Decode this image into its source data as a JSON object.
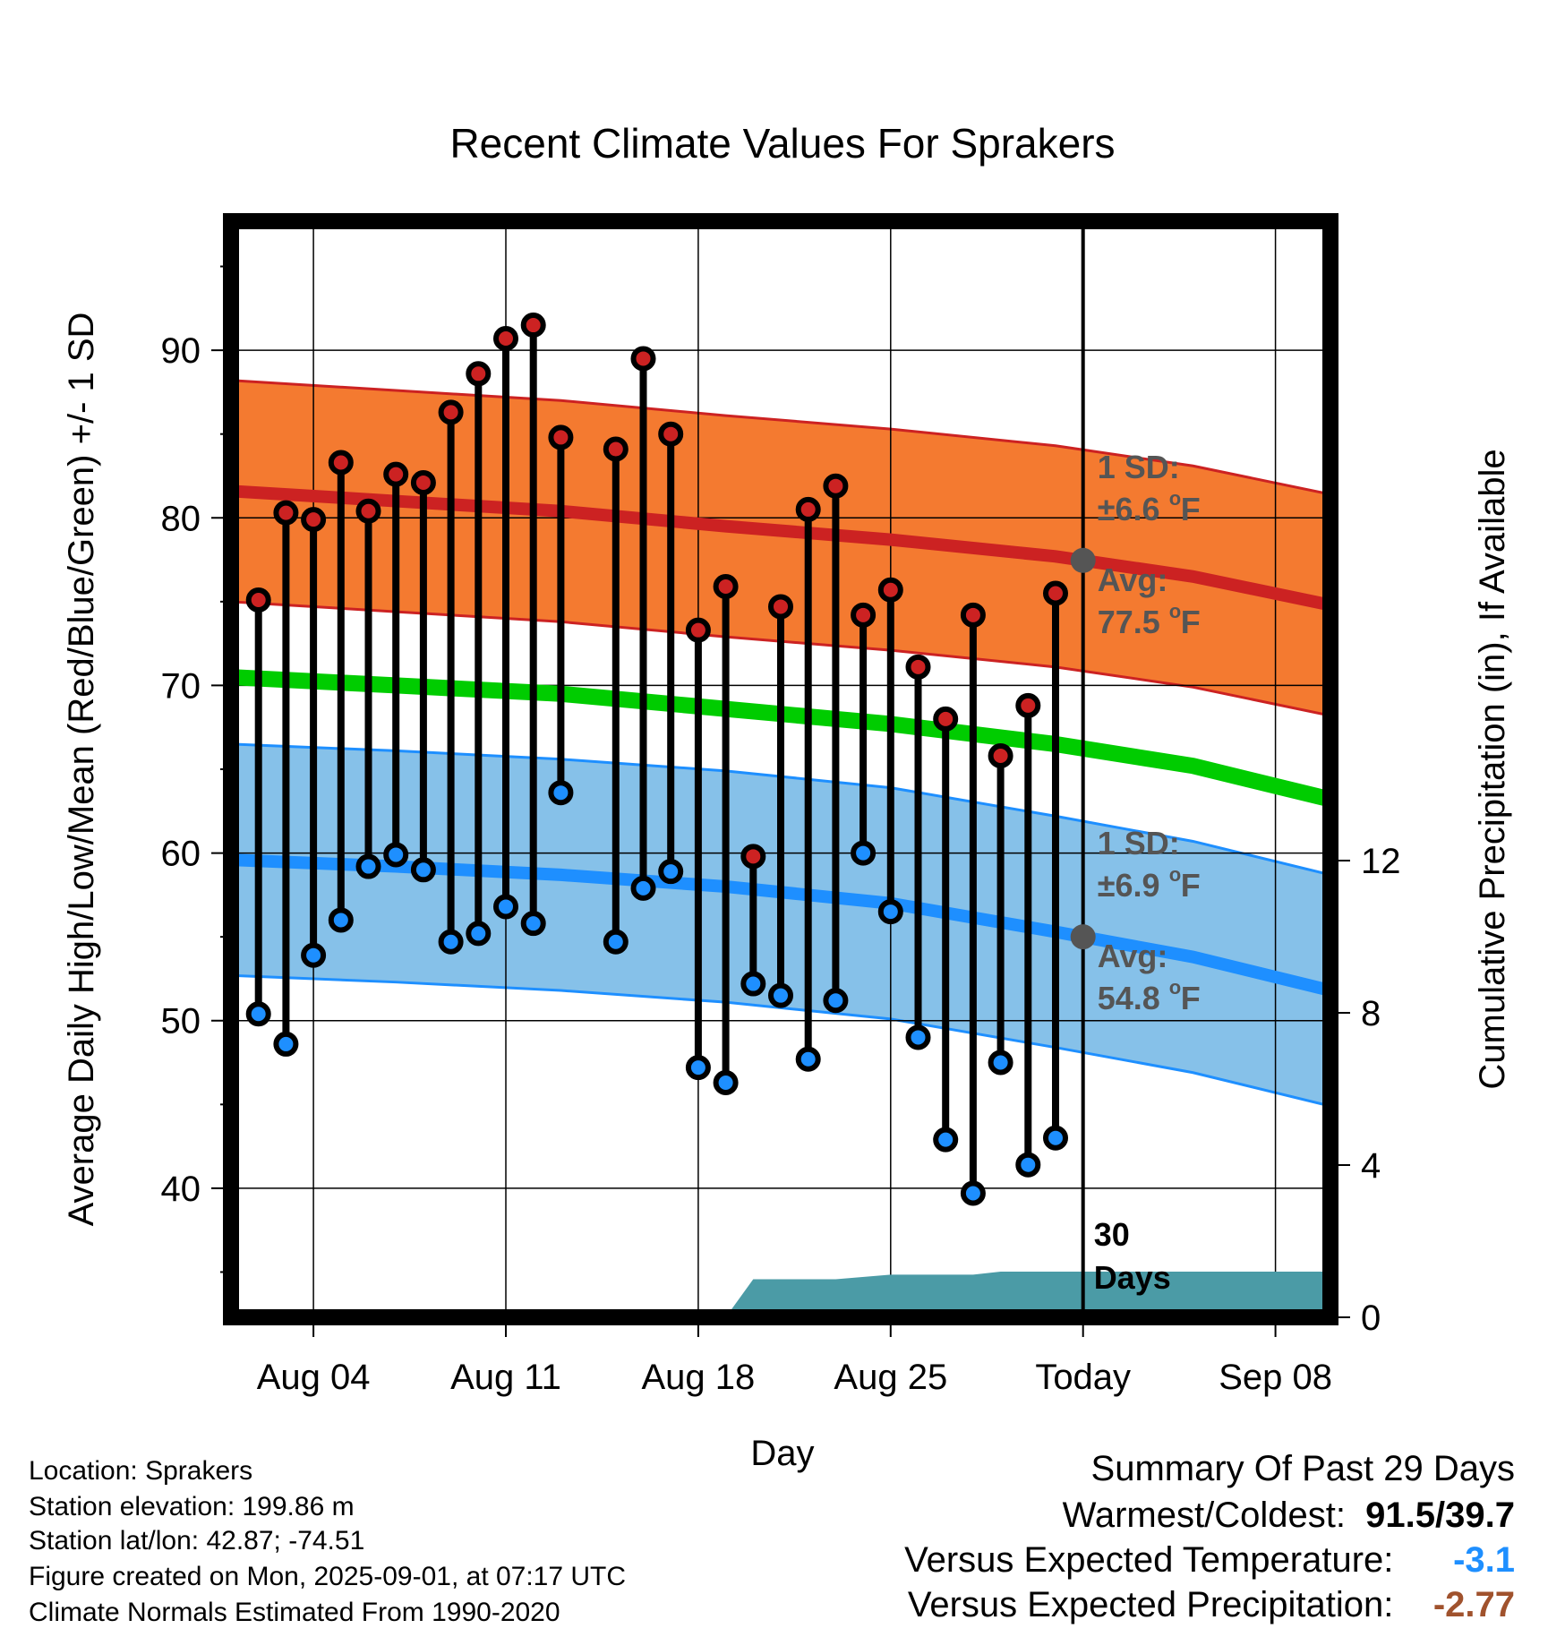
{
  "chart_data": {
    "type": "line",
    "title": "Recent Climate Values For Sprakers",
    "xlabel": "Day",
    "ylabel": "Average Daily High/Low/Mean (Red/Blue/Green) +/- 1 SD",
    "y2label": "Cumulative Precipitation (in), If Available",
    "xlim": [
      "2025-08-01",
      "2025-09-10"
    ],
    "ylim": [
      32.3,
      97.7
    ],
    "y2lim": [
      0,
      28.8
    ],
    "xticks": [
      {
        "date": "2025-08-04",
        "label": "Aug 04"
      },
      {
        "date": "2025-08-11",
        "label": "Aug 11"
      },
      {
        "date": "2025-08-18",
        "label": "Aug 18"
      },
      {
        "date": "2025-08-25",
        "label": "Aug 25"
      },
      {
        "date": "2025-09-01",
        "label": "Today"
      },
      {
        "date": "2025-09-08",
        "label": "Sep 08"
      }
    ],
    "yticks": [
      40,
      50,
      60,
      70,
      80,
      90
    ],
    "y2ticks": [
      0,
      4,
      8,
      12
    ],
    "grid": true,
    "today": "2025-09-01",
    "today_label": [
      "30",
      "Days"
    ],
    "normals_x": [
      "2025-08-01",
      "2025-08-07",
      "2025-08-13",
      "2025-08-19",
      "2025-08-25",
      "2025-08-31",
      "2025-09-05",
      "2025-09-10"
    ],
    "normal_high": {
      "mean": [
        81.6,
        81.0,
        80.4,
        79.5,
        78.7,
        77.7,
        76.5,
        74.8
      ],
      "sd": 6.6,
      "color": "#cc2222",
      "band_color": "#f47a30"
    },
    "normal_low": {
      "mean": [
        59.6,
        59.2,
        58.7,
        58.0,
        57.0,
        55.3,
        53.8,
        51.8
      ],
      "sd": 6.9,
      "color": "#1e8fff",
      "band_color": "#86c1e9"
    },
    "normal_mean": {
      "values": [
        70.5,
        70.0,
        69.5,
        68.6,
        67.7,
        66.5,
        65.2,
        63.2
      ],
      "color": "#00cc00"
    },
    "observed": {
      "dates": [
        "2025-08-02",
        "2025-08-03",
        "2025-08-04",
        "2025-08-05",
        "2025-08-06",
        "2025-08-07",
        "2025-08-08",
        "2025-08-09",
        "2025-08-10",
        "2025-08-11",
        "2025-08-12",
        "2025-08-13",
        "2025-08-15",
        "2025-08-16",
        "2025-08-17",
        "2025-08-18",
        "2025-08-19",
        "2025-08-20",
        "2025-08-21",
        "2025-08-22",
        "2025-08-23",
        "2025-08-24",
        "2025-08-25",
        "2025-08-26",
        "2025-08-27",
        "2025-08-28",
        "2025-08-29",
        "2025-08-30",
        "2025-08-31"
      ],
      "high": [
        75.1,
        80.3,
        79.9,
        83.3,
        80.4,
        82.6,
        82.1,
        86.3,
        88.6,
        90.7,
        91.5,
        84.8,
        84.1,
        89.5,
        85.0,
        73.3,
        75.9,
        59.8,
        74.7,
        80.5,
        81.9,
        74.2,
        75.7,
        71.1,
        68.0,
        74.2,
        65.8,
        68.8,
        75.5
      ],
      "low": [
        50.4,
        48.6,
        53.9,
        56.0,
        59.2,
        59.9,
        59.0,
        54.7,
        55.2,
        56.8,
        55.8,
        63.6,
        54.7,
        57.9,
        58.9,
        47.2,
        46.3,
        52.2,
        51.5,
        47.7,
        51.2,
        60.0,
        56.5,
        49.0,
        42.9,
        39.7,
        47.5,
        41.4,
        43.0
      ]
    },
    "precip": {
      "dates": [
        "2025-08-19",
        "2025-08-20",
        "2025-08-23",
        "2025-08-25",
        "2025-08-28",
        "2025-08-29",
        "2025-09-10"
      ],
      "values": [
        0,
        1.0,
        1.0,
        1.12,
        1.12,
        1.2,
        1.2
      ],
      "color": "#4b9ba6"
    },
    "annotations": {
      "high_sd": [
        "1 SD:",
        "±6.6",
        "o",
        "F"
      ],
      "high_avg": [
        "Avg:",
        "77.5",
        "o",
        "F"
      ],
      "low_sd": [
        "1 SD:",
        "±6.9",
        "o",
        "F"
      ],
      "low_avg": [
        "Avg:",
        "54.8",
        "o",
        "F"
      ],
      "color": "#555555"
    }
  },
  "info": {
    "location": "Location: Sprakers",
    "elevation": "Station elevation: 199.86 m",
    "latlon": "Station lat/lon: 42.87; -74.51",
    "created": "Figure created on Mon, 2025-09-01, at 07:17 UTC",
    "normals": "Climate Normals Estimated From 1990-2020"
  },
  "summary": {
    "title": "Summary Of Past 29 Days",
    "warmest_label": "Warmest/Coldest:",
    "warmest_value": "91.5/39.7",
    "temp_label": "Versus Expected Temperature:",
    "temp_value": "-3.1",
    "temp_color": "#1e8fff",
    "precip_label": "Versus Expected Precipitation:",
    "precip_value": "-2.77",
    "precip_color": "#a0522d"
  }
}
